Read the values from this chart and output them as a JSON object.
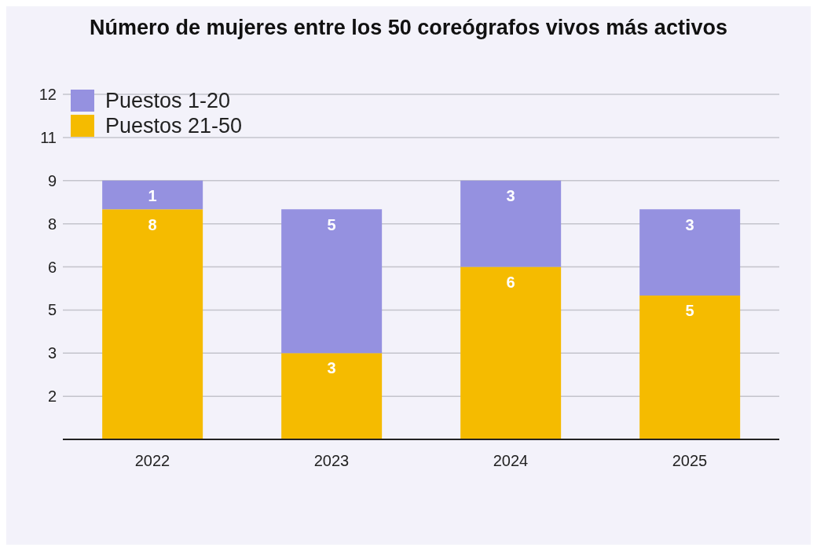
{
  "chart_data": {
    "type": "bar",
    "title": "Número de mujeres entre los 50 coreógrafos vivos más activos",
    "categories": [
      "2022",
      "2023",
      "2024",
      "2025"
    ],
    "series": [
      {
        "name": "Puestos 21-50",
        "color": "#f5bb00",
        "values": [
          8,
          3,
          6,
          5
        ]
      },
      {
        "name": "Puestos 1-20",
        "color": "#9591e0",
        "values": [
          1,
          5,
          3,
          3
        ]
      }
    ],
    "stacked": true,
    "data_labels": true,
    "legend": "top left",
    "grid": "y",
    "ylim": [
      0,
      12
    ],
    "yticks": [
      {
        "value": 1.5,
        "label": "2"
      },
      3,
      {
        "value": 4.5,
        "label": "5"
      },
      6,
      {
        "value": 7.5,
        "label": "8"
      },
      9,
      {
        "value": 10.5,
        "label": "11"
      },
      12
    ]
  }
}
